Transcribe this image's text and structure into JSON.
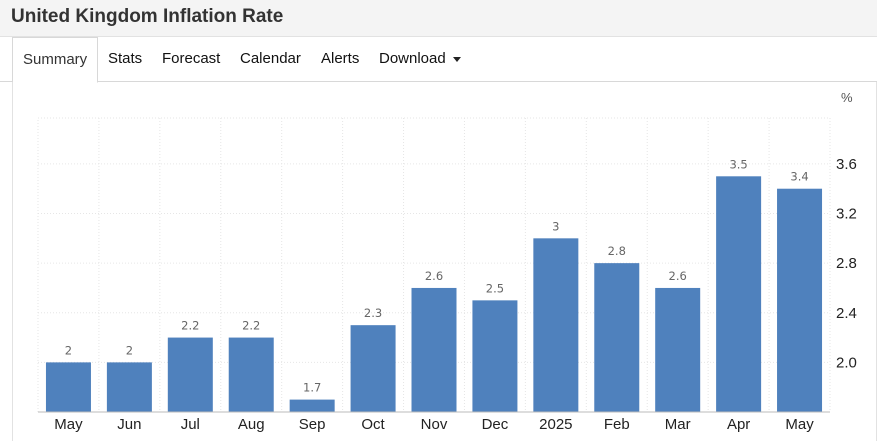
{
  "header": {
    "title": "United Kingdom Inflation Rate"
  },
  "tabs": [
    {
      "label": "Summary",
      "active": true
    },
    {
      "label": "Stats"
    },
    {
      "label": "Forecast"
    },
    {
      "label": "Calendar"
    },
    {
      "label": "Alerts"
    },
    {
      "label": "Download",
      "dropdown": true
    }
  ],
  "colors": {
    "bar": "#4f81bd",
    "grid": "#e6e6e6"
  },
  "chart_data": {
    "type": "bar",
    "unit": "%",
    "categories": [
      "May",
      "Jun",
      "Jul",
      "Aug",
      "Sep",
      "Oct",
      "Nov",
      "Dec",
      "2025",
      "Feb",
      "Mar",
      "Apr",
      "May"
    ],
    "values": [
      2,
      2,
      2.2,
      2.2,
      1.7,
      2.3,
      2.6,
      2.5,
      3,
      2.8,
      2.6,
      3.5,
      3.4
    ],
    "data_labels": [
      "2",
      "2",
      "2.2",
      "2.2",
      "1.7",
      "2.3",
      "2.6",
      "2.5",
      "3",
      "2.8",
      "2.6",
      "3.5",
      "3.4"
    ],
    "yticks": [
      2.0,
      2.4,
      2.8,
      3.2,
      3.6
    ],
    "ytick_labels": [
      "2.0",
      "2.4",
      "2.8",
      "3.2",
      "3.6"
    ],
    "ylim": [
      1.6,
      3.97
    ],
    "grid": true,
    "legend": "none"
  }
}
